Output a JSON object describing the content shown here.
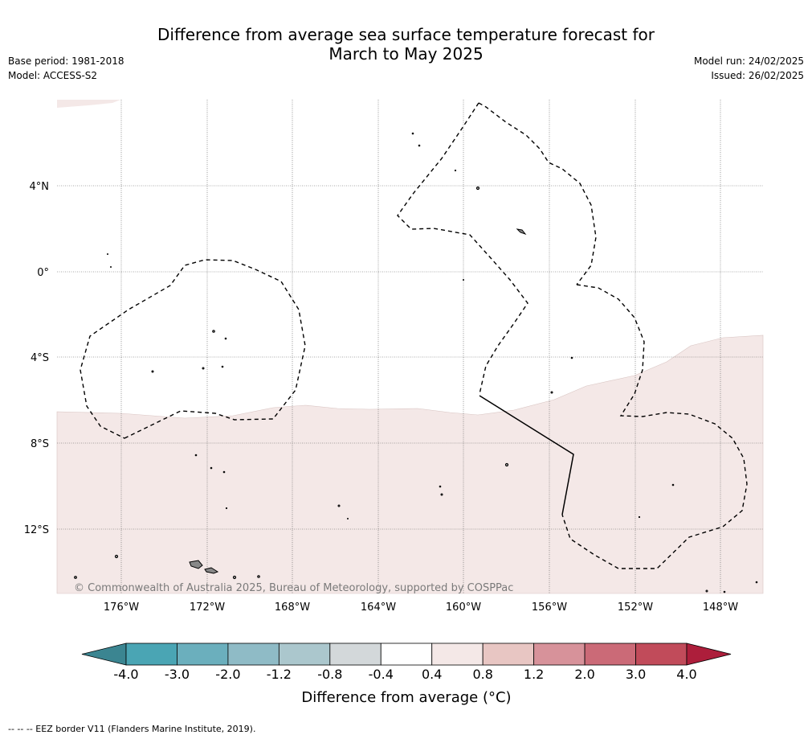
{
  "header": {
    "title_line1": "Difference from average sea surface temperature forecast for",
    "title_line2": "March to May 2025",
    "base_period": "Base period: 1981-2018",
    "model": "Model: ACCESS-S2",
    "model_run": "Model run: 24/02/2025",
    "issued": "Issued: 26/02/2025"
  },
  "map": {
    "lat_labels": [
      "4°N",
      "0°",
      "4°S",
      "8°S",
      "12°S"
    ],
    "lon_labels": [
      "176°W",
      "172°W",
      "168°W",
      "164°W",
      "160°W",
      "156°W",
      "152°W",
      "148°W"
    ],
    "copyright": "© Commonwealth of Australia 2025, Bureau of Meteorology, supported by COSPPac",
    "anomaly_fill_color": "#f4e8e7",
    "anomaly_category": "0.4 to 0.8"
  },
  "colorbar": {
    "title": "Difference from average (°C)",
    "tick_labels": [
      "-4.0",
      "-3.0",
      "-2.0",
      "-1.2",
      "-0.8",
      "-0.4",
      "0.4",
      "0.8",
      "1.2",
      "2.0",
      "3.0",
      "4.0"
    ],
    "colors": [
      "#4aa5b4",
      "#6bafbd",
      "#8fbbc6",
      "#abc7cd",
      "#d3d8da",
      "#ffffff",
      "#f4e8e7",
      "#e8c6c3",
      "#d7929a",
      "#cb6a77",
      "#c14b5a"
    ],
    "under_color": "#3b8591",
    "over_color": "#ad1e3b"
  },
  "footer": {
    "legend_text": "--  --  -- EEZ border V11 (Flanders Marine Institute, 2019)."
  }
}
